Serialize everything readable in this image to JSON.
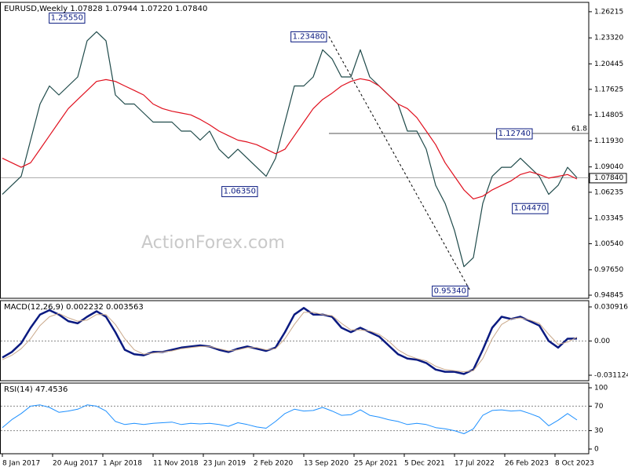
{
  "chart_data": [
    {
      "type": "line",
      "title": "EURUSD,Weekly  1.07828 1.07944 1.07220 1.07840",
      "watermark": "ActionForex.com",
      "x": [
        0,
        6,
        12,
        18,
        24,
        30,
        36,
        42,
        48,
        54,
        60,
        66,
        72,
        78,
        84,
        90,
        96,
        102,
        108,
        114,
        120,
        126,
        132,
        138,
        144,
        150,
        156,
        162,
        168,
        174,
        180,
        186,
        192,
        198,
        204,
        210,
        216,
        222,
        228,
        234,
        240,
        246,
        252,
        258,
        264,
        270,
        276,
        282,
        288,
        294,
        300,
        306,
        312,
        318,
        324,
        330,
        336,
        342,
        348,
        354,
        360,
        366
      ],
      "series": [
        {
          "name": "EURUSD",
          "color": "#1f4a4a",
          "width": 1.2,
          "values": [
            1.06,
            1.07,
            1.08,
            1.12,
            1.16,
            1.18,
            1.17,
            1.18,
            1.19,
            1.23,
            1.24,
            1.23,
            1.17,
            1.16,
            1.16,
            1.15,
            1.14,
            1.14,
            1.14,
            1.13,
            1.13,
            1.12,
            1.13,
            1.11,
            1.1,
            1.11,
            1.1,
            1.09,
            1.08,
            1.1,
            1.14,
            1.18,
            1.18,
            1.19,
            1.22,
            1.21,
            1.19,
            1.19,
            1.22,
            1.19,
            1.18,
            1.17,
            1.16,
            1.13,
            1.13,
            1.11,
            1.07,
            1.05,
            1.02,
            0.98,
            0.99,
            1.05,
            1.08,
            1.09,
            1.09,
            1.1,
            1.09,
            1.08,
            1.06,
            1.07,
            1.09,
            1.0784
          ]
        },
        {
          "name": "MA",
          "color": "#e0101e",
          "width": 1.2,
          "values": [
            1.1,
            1.095,
            1.09,
            1.095,
            1.11,
            1.125,
            1.14,
            1.155,
            1.165,
            1.175,
            1.185,
            1.187,
            1.185,
            1.18,
            1.175,
            1.17,
            1.16,
            1.155,
            1.152,
            1.15,
            1.148,
            1.143,
            1.137,
            1.13,
            1.125,
            1.12,
            1.118,
            1.115,
            1.11,
            1.105,
            1.11,
            1.125,
            1.14,
            1.155,
            1.165,
            1.172,
            1.18,
            1.185,
            1.188,
            1.186,
            1.18,
            1.17,
            1.16,
            1.155,
            1.145,
            1.13,
            1.115,
            1.095,
            1.08,
            1.065,
            1.055,
            1.058,
            1.065,
            1.07,
            1.075,
            1.082,
            1.085,
            1.082,
            1.078,
            1.08,
            1.082,
            1.077
          ]
        }
      ],
      "xlim": [
        -1.5,
        372
      ],
      "ylim": [
        0.945,
        1.2725
      ],
      "yticks": [
        1.26215,
        {
          "value": 1.2332,
          "label": "1.23320"
        },
        1.20445,
        1.17625,
        1.14805,
        {
          "value": 1.1193,
          "label": "1.11930"
        },
        {
          "value": 1.0904,
          "label": "1.09040"
        },
        1.06235,
        1.03345,
        {
          "value": 1.0054,
          "label": "1.00540"
        },
        {
          "value": 0.9765,
          "label": "0.97650"
        },
        0.94845
      ],
      "annotations": [
        {
          "text": "1.25550",
          "x": 54,
          "y": 1.2555
        },
        {
          "text": "1.23480",
          "x": 208,
          "y": 1.2348
        },
        {
          "text": "1.06350",
          "x": 164,
          "y": 1.0635
        },
        {
          "text": "0.95340",
          "x": 298,
          "y": 0.9534
        },
        {
          "text": "1.12740",
          "x": 339,
          "y": 1.1274
        },
        {
          "text": "1.04470",
          "x": 349,
          "y": 1.0447
        }
      ],
      "retracement": {
        "label": "61.8",
        "value": 1.1274,
        "from": {
          "x": 208,
          "y": 1.2348
        },
        "to": {
          "x": 298,
          "y": 0.9534
        }
      },
      "last_price": {
        "value": 1.0784,
        "label": "1.07840"
      }
    },
    {
      "type": "line",
      "title": "MACD(12,26,9) 0.002232 0.003563",
      "x": [
        0,
        6,
        12,
        18,
        24,
        30,
        36,
        42,
        48,
        54,
        60,
        66,
        72,
        78,
        84,
        90,
        96,
        102,
        108,
        114,
        120,
        126,
        132,
        138,
        144,
        150,
        156,
        162,
        168,
        174,
        180,
        186,
        192,
        198,
        204,
        210,
        216,
        222,
        228,
        234,
        240,
        246,
        252,
        258,
        264,
        270,
        276,
        282,
        288,
        294,
        300,
        306,
        312,
        318,
        324,
        330,
        336,
        342,
        348,
        354,
        360,
        366
      ],
      "series": [
        {
          "name": "MACD",
          "color": "#0a1a80",
          "width": 2.5,
          "values": [
            -0.015,
            -0.01,
            -0.002,
            0.012,
            0.024,
            0.028,
            0.024,
            0.018,
            0.016,
            0.022,
            0.027,
            0.022,
            0.008,
            -0.008,
            -0.012,
            -0.013,
            -0.01,
            -0.01,
            -0.008,
            -0.006,
            -0.005,
            -0.004,
            -0.005,
            -0.008,
            -0.01,
            -0.007,
            -0.005,
            -0.007,
            -0.009,
            -0.006,
            0.008,
            0.024,
            0.03,
            0.024,
            0.024,
            0.022,
            0.012,
            0.008,
            0.012,
            0.008,
            0.004,
            -0.004,
            -0.012,
            -0.016,
            -0.017,
            -0.02,
            -0.026,
            -0.028,
            -0.028,
            -0.03,
            -0.026,
            -0.008,
            0.012,
            0.022,
            0.02,
            0.022,
            0.018,
            0.014,
            0,
            -0.006,
            0.002,
            0.002232
          ]
        },
        {
          "name": "Signal",
          "color": "#c9a88a",
          "width": 1,
          "values": [
            -0.017,
            -0.013,
            -0.007,
            0.002,
            0.014,
            0.022,
            0.025,
            0.021,
            0.018,
            0.019,
            0.024,
            0.024,
            0.015,
            0.002,
            -0.008,
            -0.012,
            -0.011,
            -0.01,
            -0.009,
            -0.007,
            -0.006,
            -0.005,
            -0.005,
            -0.007,
            -0.009,
            -0.008,
            -0.006,
            -0.006,
            -0.008,
            -0.007,
            0.002,
            0.015,
            0.026,
            0.026,
            0.024,
            0.023,
            0.016,
            0.01,
            0.01,
            0.009,
            0.006,
            0,
            -0.008,
            -0.013,
            -0.016,
            -0.018,
            -0.023,
            -0.026,
            -0.027,
            -0.028,
            -0.027,
            -0.016,
            0.002,
            0.015,
            0.02,
            0.021,
            0.019,
            0.016,
            0.006,
            -0.003,
            -0.001,
            0.003563
          ]
        }
      ],
      "xlim": [
        -1.5,
        372
      ],
      "ylim": [
        -0.0361,
        0.0366
      ],
      "yticks": [
        0.030916,
        {
          "value": 0,
          "label": "0.00"
        },
        -0.031124
      ],
      "level_lines": [
        0
      ]
    },
    {
      "type": "line",
      "title": "RSI(14) 47.4536",
      "x": [
        0,
        6,
        12,
        18,
        24,
        30,
        36,
        42,
        48,
        54,
        60,
        66,
        72,
        78,
        84,
        90,
        96,
        102,
        108,
        114,
        120,
        126,
        132,
        138,
        144,
        150,
        156,
        162,
        168,
        174,
        180,
        186,
        192,
        198,
        204,
        210,
        216,
        222,
        228,
        234,
        240,
        246,
        252,
        258,
        264,
        270,
        276,
        282,
        288,
        294,
        300,
        306,
        312,
        318,
        324,
        330,
        336,
        342,
        348,
        354,
        360,
        366
      ],
      "series": [
        {
          "name": "RSI",
          "color": "#1e90ff",
          "width": 1,
          "values": [
            35,
            48,
            58,
            70,
            72,
            68,
            60,
            62,
            65,
            72,
            70,
            62,
            45,
            40,
            42,
            40,
            42,
            43,
            44,
            40,
            42,
            41,
            42,
            40,
            37,
            43,
            40,
            36,
            34,
            45,
            58,
            65,
            62,
            63,
            68,
            62,
            55,
            56,
            64,
            55,
            52,
            48,
            45,
            40,
            42,
            40,
            35,
            33,
            30,
            25,
            33,
            55,
            63,
            64,
            62,
            63,
            58,
            52,
            38,
            47,
            58,
            47.4536
          ]
        }
      ],
      "xlim": [
        -1.5,
        372
      ],
      "ylim": [
        -7.7,
        107.7
      ],
      "yticks": [
        100,
        70,
        30,
        0
      ],
      "level_lines": [
        70,
        30
      ],
      "xticks": [
        {
          "value": 0,
          "label": "8 Jan 2017"
        },
        {
          "value": 32,
          "label": "20 Aug 2017"
        },
        {
          "value": 64,
          "label": "1 Apr 2018"
        },
        {
          "value": 96,
          "label": "11 Nov 2018"
        },
        {
          "value": 128,
          "label": "23 Jun 2019"
        },
        {
          "value": 160,
          "label": "2 Feb 2020"
        },
        {
          "value": 192,
          "label": "13 Sep 2020"
        },
        {
          "value": 224,
          "label": "25 Apr 2021"
        },
        {
          "value": 256,
          "label": "5 Dec 2021"
        },
        {
          "value": 288,
          "label": "17 Jul 2022"
        },
        {
          "value": 320,
          "label": "26 Feb 2023"
        },
        {
          "value": 352,
          "label": "8 Oct 2023"
        }
      ]
    }
  ]
}
